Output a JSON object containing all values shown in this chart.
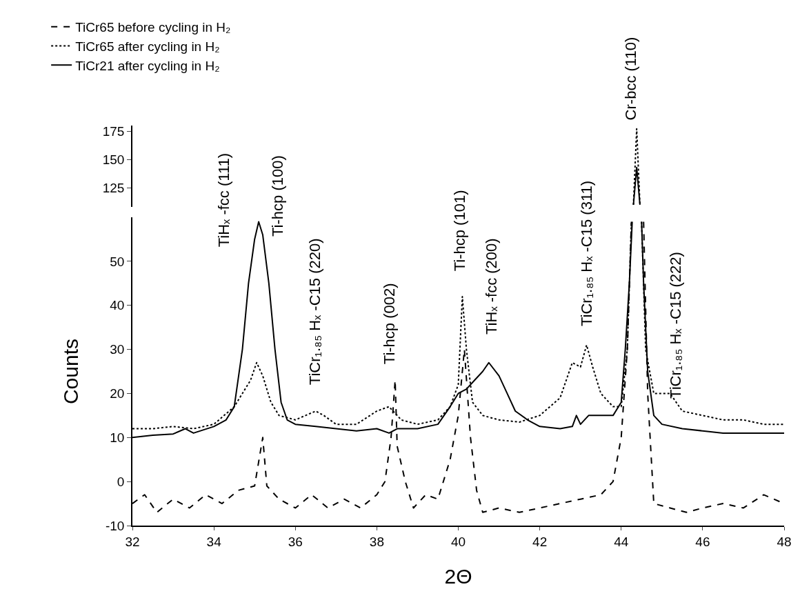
{
  "chart_data": [
    {
      "type": "line",
      "xlim": [
        32,
        48
      ],
      "ylim": [
        108,
        180
      ],
      "yticks": [
        125,
        150,
        175
      ],
      "tick_labels": "y",
      "grid": false,
      "marker": "none",
      "series": [
        {
          "color": "#000000",
          "line_style": "solid",
          "x": [
            44.3,
            44.38,
            44.46
          ],
          "values": [
            110,
            143,
            110
          ]
        },
        {
          "color": "#000000",
          "line_style": "dotted",
          "x": [
            44.3,
            44.38,
            44.46
          ],
          "values": [
            110,
            177,
            110
          ]
        }
      ],
      "annotations": [
        "Cr-bcc (110)"
      ]
    },
    {
      "type": "line",
      "xlim": [
        32,
        48
      ],
      "ylim": [
        -10,
        60
      ],
      "xticks": [
        32,
        34,
        36,
        38,
        40,
        42,
        44,
        46,
        48
      ],
      "yticks": [
        -10,
        0,
        10,
        20,
        30,
        40,
        50
      ],
      "xlabel": "2Θ",
      "ylabel": "Counts",
      "legend": "top left",
      "grid": false,
      "marker": "none",
      "series": [
        {
          "name": "TiCr65 before cycling in H₂",
          "color": "#000000",
          "line_style": "dashed",
          "x": [
            32,
            32.3,
            32.6,
            33,
            33.4,
            33.8,
            34.2,
            34.6,
            35,
            35.2,
            35.3,
            35.6,
            36,
            36.4,
            36.8,
            37.2,
            37.6,
            38,
            38.2,
            38.35,
            38.45,
            38.5,
            38.7,
            38.9,
            39.2,
            39.5,
            39.8,
            40.0,
            40.15,
            40.3,
            40.45,
            40.6,
            41,
            41.5,
            42,
            42.5,
            43,
            43.5,
            43.8,
            44.0,
            44.15,
            44.25,
            44.4,
            44.55,
            44.65,
            44.8,
            45.2,
            45.6,
            46,
            46.5,
            47,
            47.5,
            48
          ],
          "values": [
            -5,
            -3,
            -7,
            -4,
            -6,
            -3,
            -5,
            -2,
            -1,
            10,
            -1,
            -4,
            -6,
            -3,
            -6,
            -4,
            -6,
            -3,
            0,
            10,
            23,
            8,
            0,
            -6,
            -3,
            -4,
            5,
            15,
            30,
            10,
            -2,
            -7,
            -6,
            -7,
            -6,
            -5,
            -4,
            -3,
            0,
            10,
            30,
            59,
            null,
            59,
            20,
            -5,
            -6,
            -7,
            -6,
            -5,
            -6,
            -3,
            -5
          ]
        },
        {
          "name": "TiCr65 after cycling in H₂",
          "color": "#000000",
          "line_style": "dotted",
          "x": [
            32,
            32.5,
            33,
            33.5,
            34,
            34.5,
            34.7,
            34.9,
            35.05,
            35.2,
            35.4,
            35.6,
            36,
            36.5,
            36.7,
            37,
            37.5,
            38,
            38.3,
            38.6,
            39,
            39.5,
            39.8,
            40.0,
            40.1,
            40.2,
            40.35,
            40.6,
            41,
            41.5,
            42,
            42.5,
            42.8,
            43,
            43.15,
            43.3,
            43.5,
            43.8,
            44.0,
            44.15,
            44.25,
            44.38,
            44.5,
            44.6,
            44.8,
            45,
            45.2,
            45.5,
            46,
            46.5,
            47,
            47.5,
            48
          ],
          "values": [
            12,
            12,
            12.5,
            12,
            13,
            17,
            20,
            23,
            27,
            24,
            18,
            15,
            14,
            16,
            15,
            13,
            13,
            16,
            17,
            14,
            13,
            14,
            17,
            22,
            42,
            30,
            18,
            15,
            14,
            13.5,
            15,
            19,
            27,
            26,
            31,
            26,
            20,
            17,
            17,
            30,
            59,
            null,
            59,
            30,
            20,
            20,
            20,
            16,
            15,
            14,
            14,
            13,
            13
          ]
        },
        {
          "name": "TiCr21 after cycling in H₂",
          "color": "#000000",
          "line_style": "solid",
          "x": [
            32,
            32.5,
            33,
            33.3,
            33.5,
            34,
            34.3,
            34.5,
            34.7,
            34.85,
            35.0,
            35.1,
            35.2,
            35.35,
            35.5,
            35.65,
            35.8,
            36,
            36.5,
            37,
            37.5,
            38,
            38.3,
            38.5,
            39,
            39.5,
            39.8,
            40,
            40.2,
            40.4,
            40.6,
            40.75,
            41,
            41.2,
            41.4,
            41.7,
            42,
            42.5,
            42.8,
            42.9,
            43,
            43.2,
            43.5,
            43.8,
            44.0,
            44.1,
            44.2,
            44.27,
            44.38,
            44.5,
            44.55,
            44.65,
            44.8,
            45,
            45.5,
            46,
            46.5,
            47,
            47.5,
            48
          ],
          "values": [
            10,
            10.5,
            10.8,
            12,
            11,
            12.5,
            14,
            17,
            30,
            45,
            55,
            59,
            56,
            45,
            30,
            18,
            14,
            13,
            12.5,
            12,
            11.5,
            12,
            11,
            12,
            12,
            13,
            17,
            20,
            21,
            23,
            25,
            27,
            24,
            20,
            16,
            14,
            12.5,
            12,
            12.5,
            15,
            13,
            15,
            15,
            15,
            18,
            30,
            45,
            59,
            null,
            59,
            45,
            25,
            15,
            13,
            12,
            11.5,
            11,
            11,
            11,
            11
          ]
        }
      ],
      "annotations": [
        "TiHₓ -fcc (111)",
        "Ti-hcp (100)",
        "TiCr₁.₈₅ Hₓ -C15 (220)",
        "Ti-hcp (002)",
        "Ti-hcp (101)",
        "TiHₓ -fcc (200)",
        "TiCr₁.₈₅ Hₓ -C15 (311)",
        "TiCr₁.₈₅ Hₓ -C15 (222)"
      ]
    }
  ]
}
